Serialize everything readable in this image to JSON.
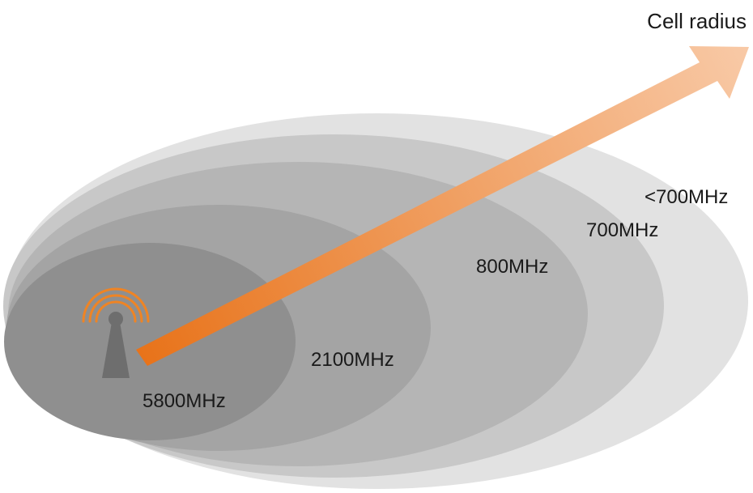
{
  "axis": {
    "label": "Cell radius"
  },
  "zones": [
    {
      "id": "lt700",
      "label": "<700MHz",
      "fill": "#e2e2e2"
    },
    {
      "id": "700",
      "label": "700MHz",
      "fill": "#c8c8c8"
    },
    {
      "id": "800",
      "label": "800MHz",
      "fill": "#b5b5b5"
    },
    {
      "id": "2100",
      "label": "2100MHz",
      "fill": "#a4a4a4"
    },
    {
      "id": "5800",
      "label": "5800MHz",
      "fill": "#8f8f8f"
    }
  ],
  "colors": {
    "arrow_start": "#e8731a",
    "arrow_end": "#f8c9a6",
    "tower": "#6e6e6e",
    "signal_waves": "#ef8424"
  },
  "icons": {
    "tower": "cell-tower-icon",
    "waves": "signal-waves-icon"
  }
}
